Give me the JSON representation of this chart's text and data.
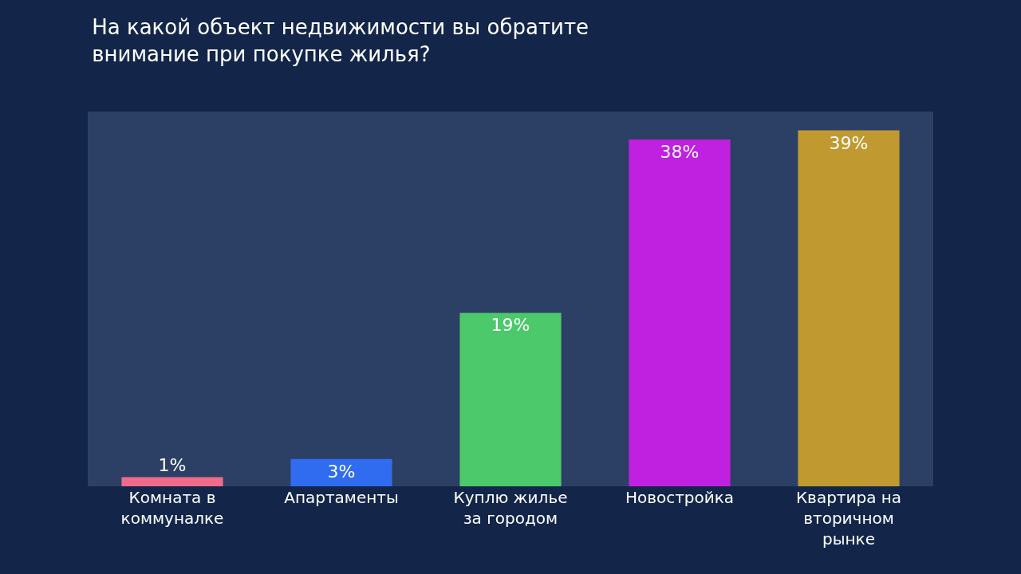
{
  "chart_data": {
    "type": "bar",
    "title": "На какой объект недвижимости вы обратите внимание при покупке жилья?",
    "categories": [
      "Комната в коммуналке",
      "Апартаменты",
      "Куплю жилье за городом",
      "Новостройка",
      "Квартира на вторичном рынке"
    ],
    "values": [
      1,
      3,
      19,
      38,
      39
    ],
    "colors": [
      "#f06a8a",
      "#2f6cf0",
      "#4cc96a",
      "#c020e0",
      "#c09a30"
    ],
    "value_labels": [
      "1%",
      "3%",
      "19%",
      "38%",
      "39%"
    ],
    "grid": false,
    "legend": false
  }
}
